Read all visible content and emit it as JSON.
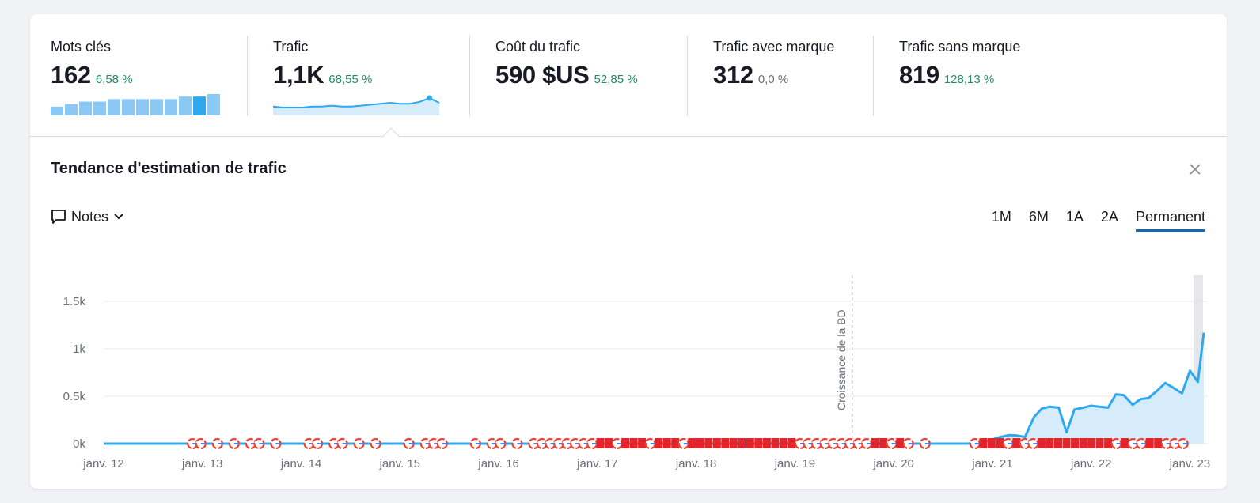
{
  "metrics": [
    {
      "label": "Mots clés",
      "value": "162",
      "delta": "6,58 %",
      "delta_color": "#1d8f5f"
    },
    {
      "label": "Trafic",
      "value": "1,1K",
      "delta": "68,55 %",
      "delta_color": "#1d8f5f"
    },
    {
      "label": "Coût du trafic",
      "value": "590 $US",
      "delta": "52,85 %",
      "delta_color": "#1d8f5f"
    },
    {
      "label": "Trafic avec marque",
      "value": "312",
      "delta": "0,0 %",
      "delta_color": "#6c6e79"
    },
    {
      "label": "Trafic sans marque",
      "value": "819",
      "delta": "128,13 %",
      "delta_color": "#1d8f5f"
    }
  ],
  "panel": {
    "title": "Tendance d'estimation de trafic",
    "notes_label": "Notes",
    "periods": [
      "1M",
      "6M",
      "1A",
      "2A",
      "Permanent"
    ],
    "active_period": "Permanent"
  },
  "colors": {
    "accent": "#1368b8",
    "line": "#2ea8ef",
    "area": "#d7ecfb",
    "positive": "#1d8f5f",
    "note_red": "#e0262a"
  },
  "icons": {
    "notes": "comment-icon",
    "chevron": "chevron-down-icon",
    "close": "close-icon"
  },
  "chart_data": [
    {
      "type": "bar",
      "values": [
        1,
        2,
        3,
        3,
        4,
        4,
        4,
        4,
        4,
        5,
        5,
        6
      ],
      "highlight_index": 10
    },
    {
      "type": "line",
      "values": [
        6,
        5,
        5,
        5,
        6,
        6,
        7,
        6,
        6,
        7,
        8,
        9,
        10,
        9,
        9,
        11,
        15,
        10
      ],
      "highlight_index": 16
    },
    {
      "type": "area",
      "xlabels": [
        "janv. 12",
        "janv. 13",
        "janv. 14",
        "janv. 15",
        "janv. 16",
        "janv. 17",
        "janv. 18",
        "janv. 19",
        "janv. 20",
        "janv. 21",
        "janv. 22",
        "janv. 23"
      ],
      "yticks": [
        "0k",
        "0.5k",
        "1k",
        "1.5k"
      ],
      "ylim": [
        0,
        1500
      ],
      "xlim": [
        2012.0,
        2023.1
      ],
      "annotation": {
        "label": "Croissance de la BD",
        "x": 2019.58
      },
      "series": [
        {
          "points": [
            [
              2012.0,
              0
            ],
            [
              2020.75,
              0
            ],
            [
              2020.92,
              20
            ],
            [
              2021.08,
              70
            ],
            [
              2021.17,
              90
            ],
            [
              2021.25,
              85
            ],
            [
              2021.33,
              70
            ],
            [
              2021.42,
              280
            ],
            [
              2021.5,
              370
            ],
            [
              2021.58,
              390
            ],
            [
              2021.67,
              380
            ],
            [
              2021.75,
              120
            ],
            [
              2021.83,
              360
            ],
            [
              2021.92,
              380
            ],
            [
              2022.0,
              400
            ],
            [
              2022.08,
              390
            ],
            [
              2022.17,
              380
            ],
            [
              2022.25,
              520
            ],
            [
              2022.33,
              510
            ],
            [
              2022.42,
              410
            ],
            [
              2022.5,
              470
            ],
            [
              2022.58,
              480
            ],
            [
              2022.67,
              560
            ],
            [
              2022.75,
              640
            ],
            [
              2022.83,
              590
            ],
            [
              2022.92,
              530
            ],
            [
              2023.0,
              770
            ],
            [
              2023.08,
              650
            ],
            [
              2023.14,
              1170
            ]
          ]
        }
      ],
      "note_markers": "GG-G-G-GG-G---GG-GG-G-G---G-GGG---G-GG-G-GGGGGGGGRRGRRRGRRRGRRRRRRRRRRRRRGGGGGGGGGRRGRG-G-----GRRRGRGGRRRRRRRRRGRGGRRGGG"
    }
  ]
}
